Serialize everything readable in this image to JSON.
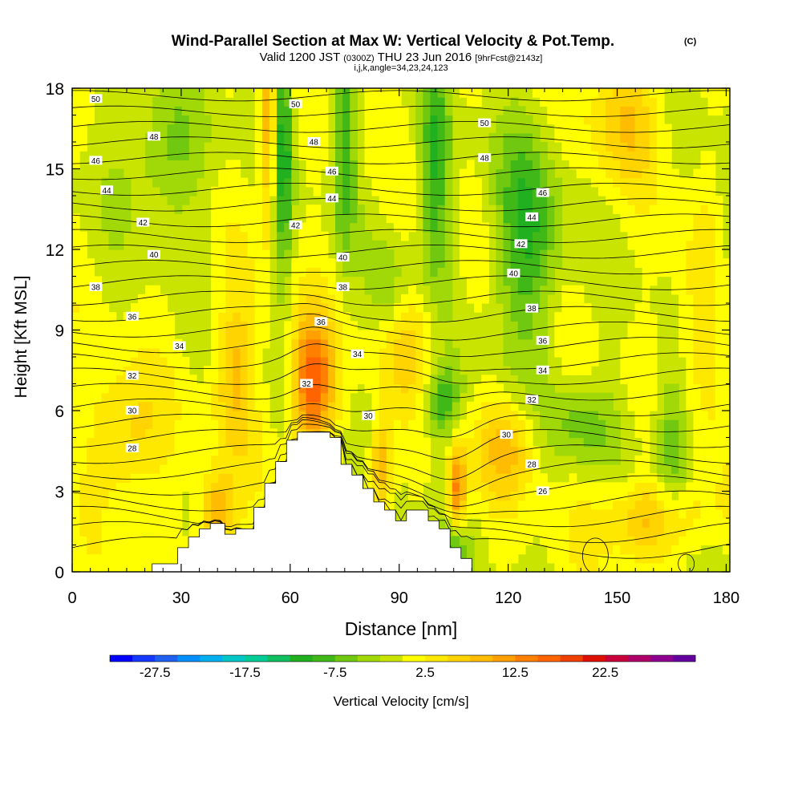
{
  "chart_data": {
    "type": "heatmap",
    "title": "Wind-Parallel Section at Max W: Vertical Velocity & Pot.Temp.",
    "title_mark": "(C)",
    "subtitle": {
      "main_a": "Valid 1200 JST",
      "zulu": "(0300Z)",
      "main_b": "THU 23 Jun 2016",
      "fcst": "[9hrFcst@2143z]"
    },
    "subtitle2": "i,j,k,angle=34,23,24,123",
    "xlabel": "Distance [nm]",
    "ylabel": "Height [Kft MSL]",
    "xlim": [
      0,
      181
    ],
    "ylim": [
      0,
      18
    ],
    "x_ticks": [
      "0",
      "30",
      "60",
      "90",
      "120",
      "150",
      "180"
    ],
    "y_ticks": [
      "0",
      "3",
      "6",
      "9",
      "12",
      "15",
      "18"
    ],
    "colorbar": {
      "label": "Vertical Velocity [cm/s]",
      "min": -32.5,
      "max": 32.5,
      "step": 2.5,
      "tick_labels": [
        "-27.5",
        "-17.5",
        "-7.5",
        "2.5",
        "12.5",
        "22.5"
      ],
      "tick_values": [
        -27.5,
        -17.5,
        -7.5,
        2.5,
        12.5,
        22.5
      ],
      "colors": [
        "#0000ff",
        "#1438ff",
        "#2060f0",
        "#0090ff",
        "#00b0f0",
        "#00c8c8",
        "#00cc96",
        "#10c060",
        "#20b020",
        "#40b818",
        "#70c810",
        "#a0d808",
        "#c8e400",
        "#ffff00",
        "#ffe800",
        "#ffd400",
        "#ffbc00",
        "#ffa000",
        "#ff8000",
        "#ff6400",
        "#f04000",
        "#e01000",
        "#c8003c",
        "#b0006a",
        "#900090",
        "#6400a0"
      ]
    },
    "isentrope_labels": [
      {
        "text": "50",
        "x": 6.5,
        "y": 17.6
      },
      {
        "text": "48",
        "x": 22.5,
        "y": 16.2
      },
      {
        "text": "46",
        "x": 6.5,
        "y": 15.3
      },
      {
        "text": "44",
        "x": 9.5,
        "y": 14.2
      },
      {
        "text": "42",
        "x": 19.5,
        "y": 13.0
      },
      {
        "text": "40",
        "x": 22.5,
        "y": 11.8
      },
      {
        "text": "38",
        "x": 6.5,
        "y": 10.6
      },
      {
        "text": "36",
        "x": 16.5,
        "y": 9.5
      },
      {
        "text": "34",
        "x": 29.5,
        "y": 8.4
      },
      {
        "text": "32",
        "x": 16.5,
        "y": 7.3
      },
      {
        "text": "30",
        "x": 16.5,
        "y": 6.0
      },
      {
        "text": "28",
        "x": 16.5,
        "y": 4.6
      },
      {
        "text": "50",
        "x": 61.5,
        "y": 17.4
      },
      {
        "text": "48",
        "x": 66.5,
        "y": 16.0
      },
      {
        "text": "46",
        "x": 71.5,
        "y": 14.9
      },
      {
        "text": "44",
        "x": 71.5,
        "y": 13.9
      },
      {
        "text": "42",
        "x": 61.5,
        "y": 12.9
      },
      {
        "text": "40",
        "x": 74.5,
        "y": 11.7
      },
      {
        "text": "38",
        "x": 74.5,
        "y": 10.6
      },
      {
        "text": "36",
        "x": 68.5,
        "y": 9.3
      },
      {
        "text": "34",
        "x": 78.5,
        "y": 8.1
      },
      {
        "text": "32",
        "x": 64.5,
        "y": 7.0
      },
      {
        "text": "30",
        "x": 81.5,
        "y": 5.8
      },
      {
        "text": "50",
        "x": 113.5,
        "y": 16.7
      },
      {
        "text": "48",
        "x": 113.5,
        "y": 15.4
      },
      {
        "text": "46",
        "x": 129.5,
        "y": 14.1
      },
      {
        "text": "44",
        "x": 126.5,
        "y": 13.2
      },
      {
        "text": "42",
        "x": 123.5,
        "y": 12.2
      },
      {
        "text": "40",
        "x": 121.5,
        "y": 11.1
      },
      {
        "text": "38",
        "x": 126.5,
        "y": 9.8
      },
      {
        "text": "36",
        "x": 129.5,
        "y": 8.6
      },
      {
        "text": "34",
        "x": 129.5,
        "y": 7.5
      },
      {
        "text": "32",
        "x": 126.5,
        "y": 6.4
      },
      {
        "text": "30",
        "x": 119.5,
        "y": 5.1
      },
      {
        "text": "28",
        "x": 126.5,
        "y": 4.0
      },
      {
        "text": "26",
        "x": 129.5,
        "y": 3.0
      }
    ]
  }
}
